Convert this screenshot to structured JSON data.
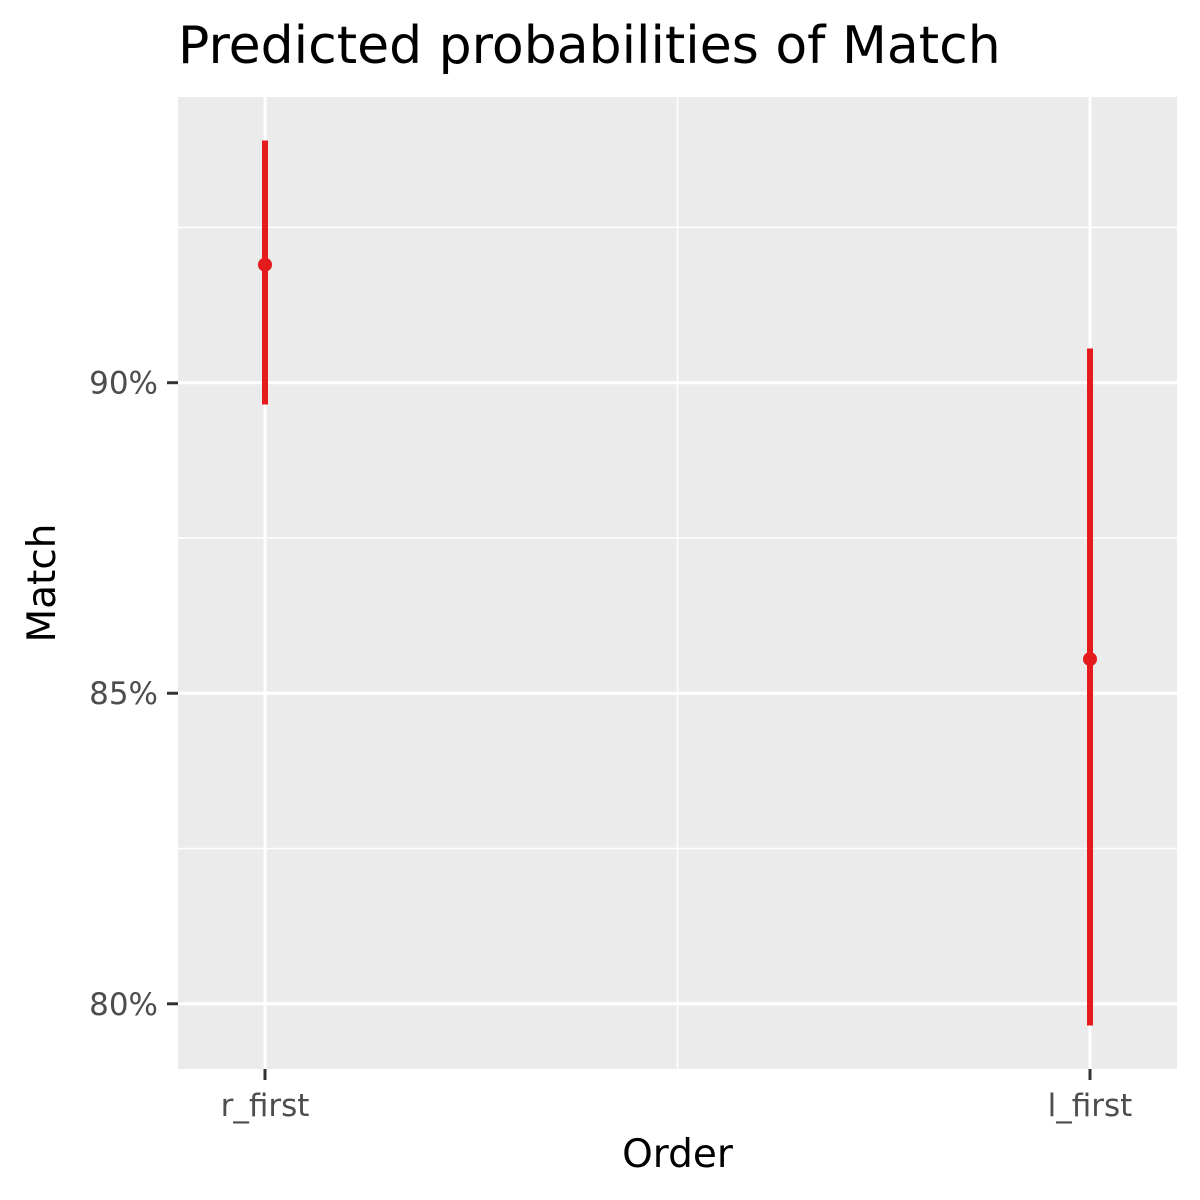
{
  "chart_data": {
    "type": "scatter",
    "title": "Predicted probabilities of Match",
    "xlabel": "Order",
    "ylabel": "Match",
    "categories": [
      "r_first",
      "l_first"
    ],
    "series": [
      {
        "values": [
          0.919,
          0.8555
        ],
        "lower": [
          0.8965,
          0.7965
        ],
        "upper": [
          0.939,
          0.9055
        ],
        "color": "#e41a1c"
      }
    ],
    "y_ticks": [
      0.8,
      0.85,
      0.9
    ],
    "y_tick_labels": [
      "80%",
      "85%",
      "90%"
    ],
    "ylim": [
      0.7895,
      0.946
    ],
    "grid": true,
    "panel_color": "#ebebeb",
    "grid_color": "#ffffff"
  }
}
